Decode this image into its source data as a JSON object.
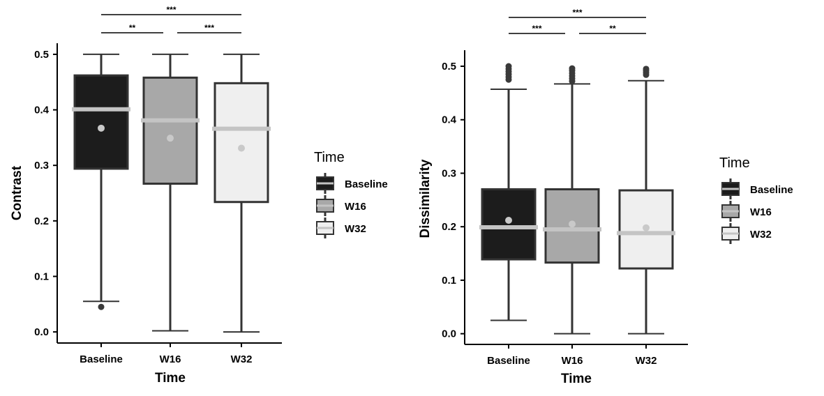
{
  "legend": {
    "title": "Time",
    "items": [
      {
        "label": "Baseline",
        "fill": "#1c1c1c"
      },
      {
        "label": "W16",
        "fill": "#a8a8a8"
      },
      {
        "label": "W32",
        "fill": "#efefef"
      }
    ]
  },
  "colors": {
    "outline": "#333333",
    "median": "#c4c4c4",
    "mean_point": "#c9c9c9",
    "outlier": "#3a3a3a"
  },
  "chart_data": [
    {
      "type": "boxplot",
      "xlabel": "Time",
      "ylabel": "Contrast",
      "categories": [
        "Baseline",
        "W16",
        "W32"
      ],
      "ylim": [
        -0.02,
        0.52
      ],
      "yticks": [
        0.0,
        0.1,
        0.2,
        0.3,
        0.4,
        0.5
      ],
      "ytick_labels": [
        "0.0",
        "0.1",
        "0.2",
        "0.3",
        "0.4",
        "0.5"
      ],
      "grid": false,
      "boxes": [
        {
          "category": "Baseline",
          "whisker_low": 0.055,
          "q1": 0.294,
          "median": 0.401,
          "q3": 0.462,
          "whisker_high": 0.5,
          "mean": 0.367,
          "outliers": [
            0.045
          ]
        },
        {
          "category": "W16",
          "whisker_low": 0.002,
          "q1": 0.267,
          "median": 0.381,
          "q3": 0.458,
          "whisker_high": 0.5,
          "mean": 0.349,
          "outliers": []
        },
        {
          "category": "W32",
          "whisker_low": 0.0,
          "q1": 0.234,
          "median": 0.366,
          "q3": 0.448,
          "whisker_high": 0.5,
          "mean": 0.331,
          "outliers": []
        }
      ],
      "significance": [
        {
          "from": "Baseline",
          "to": "W16",
          "label": "**",
          "level": 1
        },
        {
          "from": "W16",
          "to": "W32",
          "label": "***",
          "level": 1
        },
        {
          "from": "Baseline",
          "to": "W32",
          "label": "***",
          "level": 2
        }
      ]
    },
    {
      "type": "boxplot",
      "xlabel": "Time",
      "ylabel": "Dissimilarity",
      "categories": [
        "Baseline",
        "W16",
        "W32"
      ],
      "ylim": [
        -0.02,
        0.53
      ],
      "yticks": [
        0.0,
        0.1,
        0.2,
        0.3,
        0.4,
        0.5
      ],
      "ytick_labels": [
        "0.0",
        "0.1",
        "0.2",
        "0.3",
        "0.4",
        "0.5"
      ],
      "grid": false,
      "boxes": [
        {
          "category": "Baseline",
          "whisker_low": 0.025,
          "q1": 0.139,
          "median": 0.199,
          "q3": 0.27,
          "whisker_high": 0.457,
          "mean": 0.212,
          "outliers": [
            0.475,
            0.48,
            0.485,
            0.49,
            0.495,
            0.5
          ]
        },
        {
          "category": "W16",
          "whisker_low": 0.0,
          "q1": 0.133,
          "median": 0.195,
          "q3": 0.27,
          "whisker_high": 0.467,
          "mean": 0.205,
          "outliers": [
            0.472,
            0.477,
            0.482,
            0.487,
            0.492,
            0.496
          ]
        },
        {
          "category": "W32",
          "whisker_low": 0.0,
          "q1": 0.122,
          "median": 0.188,
          "q3": 0.268,
          "whisker_high": 0.473,
          "mean": 0.198,
          "outliers": [
            0.484,
            0.488,
            0.492,
            0.495
          ]
        }
      ],
      "significance": [
        {
          "from": "Baseline",
          "to": "W16",
          "label": "***",
          "level": 1
        },
        {
          "from": "W16",
          "to": "W32",
          "label": "**",
          "level": 1
        },
        {
          "from": "Baseline",
          "to": "W32",
          "label": "***",
          "level": 2
        }
      ]
    }
  ]
}
